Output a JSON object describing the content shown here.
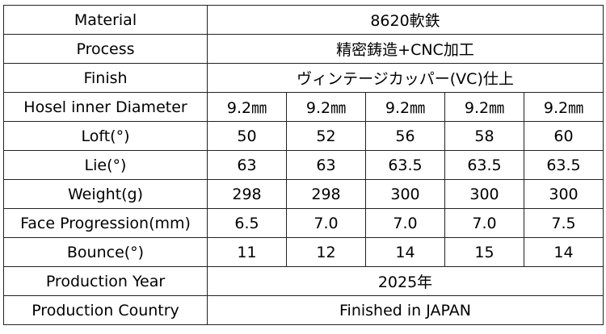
{
  "rows_merged_top": [
    {
      "label": "Material",
      "value": "8620軟鉄"
    },
    {
      "label": "Process",
      "value": "精密鋳造+CNC加工"
    },
    {
      "label": "Finish",
      "value": "ヴィンテージカッパー(VC)仕上"
    }
  ],
  "rows_spec": [
    {
      "label": "Hosel inner Diameter",
      "values": [
        "9.2㎜",
        "9.2㎜",
        "9.2㎜",
        "9.2㎜",
        "9.2㎜"
      ]
    },
    {
      "label": "Loft(°)",
      "values": [
        "50",
        "52",
        "56",
        "58",
        "60"
      ]
    },
    {
      "label": "Lie(°)",
      "values": [
        "63",
        "63",
        "63.5",
        "63.5",
        "63.5"
      ]
    },
    {
      "label": "Weight(g)",
      "values": [
        "298",
        "298",
        "300",
        "300",
        "300"
      ]
    },
    {
      "label": "Face Progression(mm)",
      "values": [
        "6.5",
        "7.0",
        "7.0",
        "7.0",
        "7.5"
      ]
    },
    {
      "label": "Bounce(°)",
      "values": [
        "11",
        "12",
        "14",
        "15",
        "14"
      ]
    }
  ],
  "rows_merged_bottom": [
    {
      "label": "Production Year",
      "value": "2025年"
    },
    {
      "label": "Production Country",
      "value": "Finished in JAPAN"
    }
  ]
}
